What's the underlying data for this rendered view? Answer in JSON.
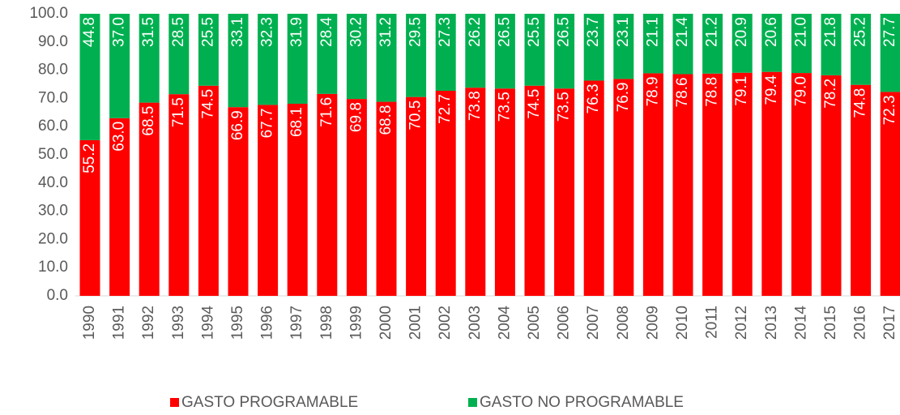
{
  "chart_data": {
    "type": "stacked_bar",
    "categories": [
      "1990",
      "1991",
      "1992",
      "1993",
      "1994",
      "1995",
      "1996",
      "1997",
      "1998",
      "1999",
      "2000",
      "2001",
      "2002",
      "2003",
      "2004",
      "2005",
      "2006",
      "2007",
      "2008",
      "2009",
      "2010",
      "2011",
      "2012",
      "2013",
      "2014",
      "2015",
      "2016",
      "2017"
    ],
    "series": [
      {
        "name": "GASTO PROGRAMABLE",
        "color": "#ff0000",
        "values": [
          55.2,
          63.0,
          68.5,
          71.5,
          74.5,
          66.9,
          67.7,
          68.1,
          71.6,
          69.8,
          68.8,
          70.5,
          72.7,
          73.8,
          73.5,
          74.5,
          73.5,
          76.3,
          76.9,
          78.9,
          78.6,
          78.8,
          79.1,
          79.4,
          79.0,
          78.2,
          74.8,
          72.3
        ],
        "value_labels": [
          "55.2",
          "63.0",
          "68.5",
          "71.5",
          "74.5",
          "66.9",
          "67.7",
          "68.1",
          "71.6",
          "69.8",
          "68.8",
          "70.5",
          "72.7",
          "73.8",
          "73.5",
          "74.5",
          "73.5",
          "76.3",
          "76.9",
          "78.9",
          "78.6",
          "78.8",
          "79.1",
          "79.4",
          "79.0",
          "78.2",
          "74.8",
          "72.3"
        ]
      },
      {
        "name": "GASTO NO PROGRAMABLE",
        "color": "#00b050",
        "values": [
          44.8,
          37.0,
          31.5,
          28.5,
          25.5,
          33.1,
          32.3,
          31.9,
          28.4,
          30.2,
          31.2,
          29.5,
          27.3,
          26.2,
          26.5,
          25.5,
          26.5,
          23.7,
          23.1,
          21.1,
          21.4,
          21.2,
          20.9,
          20.6,
          21.0,
          21.8,
          25.2,
          27.7
        ],
        "value_labels": [
          "44.8",
          "37.0",
          "31.5",
          "28.5",
          "25.5",
          "33.1",
          "32.3",
          "31.9",
          "28.4",
          "30.2",
          "31.2",
          "29.5",
          "27.3",
          "26.2",
          "26.5",
          "25.5",
          "26.5",
          "23.7",
          "23.1",
          "21.1",
          "21.4",
          "21.2",
          "20.9",
          "20.6",
          "21.0",
          "21.8",
          "25.2",
          "27.7"
        ]
      }
    ],
    "ylim": [
      0,
      100
    ],
    "yticks": [
      {
        "value": 0,
        "label": "0.0"
      },
      {
        "value": 10,
        "label": "10.0"
      },
      {
        "value": 20,
        "label": "20.0"
      },
      {
        "value": 30,
        "label": "30.0"
      },
      {
        "value": 40,
        "label": "40.0"
      },
      {
        "value": 50,
        "label": "50.0"
      },
      {
        "value": 60,
        "label": "60.0"
      },
      {
        "value": 70,
        "label": "70.0"
      },
      {
        "value": 80,
        "label": "80.0"
      },
      {
        "value": 90,
        "label": "90.0"
      },
      {
        "value": 100,
        "label": "100.0"
      }
    ],
    "grid": false,
    "legend": "bottom"
  }
}
